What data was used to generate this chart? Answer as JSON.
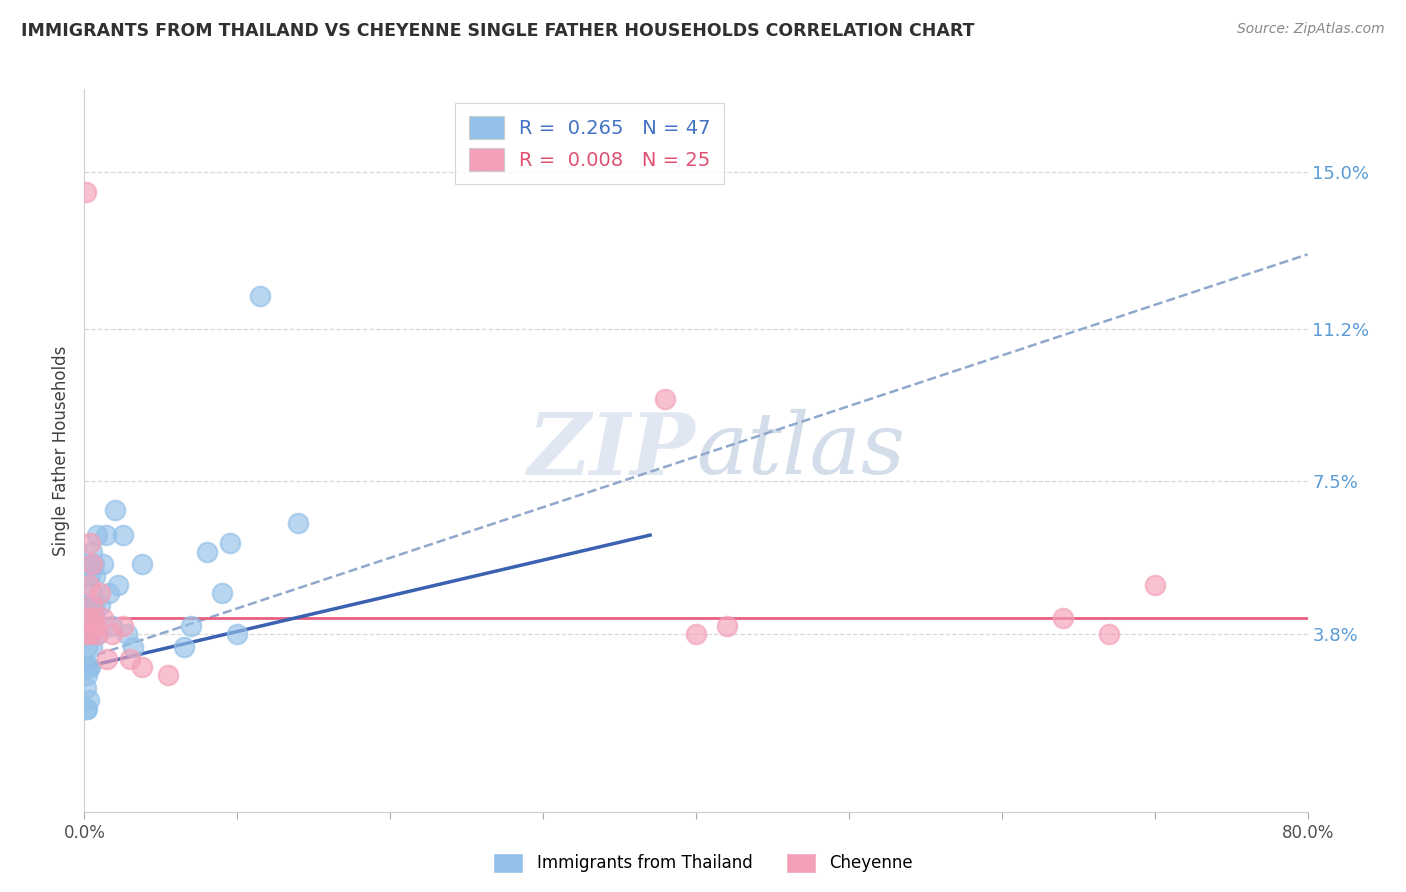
{
  "title": "IMMIGRANTS FROM THAILAND VS CHEYENNE SINGLE FATHER HOUSEHOLDS CORRELATION CHART",
  "source": "Source: ZipAtlas.com",
  "ylabel": "Single Father Households",
  "y_tick_labels": [
    "3.8%",
    "7.5%",
    "11.2%",
    "15.0%"
  ],
  "y_tick_values": [
    0.038,
    0.075,
    0.112,
    0.15
  ],
  "xlim": [
    0.0,
    0.8
  ],
  "ylim": [
    -0.005,
    0.17
  ],
  "series1_color": "#92c0e8",
  "series2_color": "#f4a0b8",
  "trendline1_color": "#3a62b0",
  "trendline2_color": "#e86080",
  "trendline_dashed_color": "#90a8cc",
  "watermark_color": "#c8d4e8",
  "background_color": "#ffffff",
  "grid_color": "#d8d8d8",
  "right_axis_color": "#5b9bd5",
  "title_color": "#303030",
  "series1_x": [
    0.001,
    0.001,
    0.001,
    0.001,
    0.002,
    0.002,
    0.002,
    0.002,
    0.002,
    0.003,
    0.003,
    0.003,
    0.003,
    0.003,
    0.004,
    0.004,
    0.004,
    0.004,
    0.005,
    0.005,
    0.005,
    0.005,
    0.006,
    0.006,
    0.007,
    0.007,
    0.008,
    0.009,
    0.01,
    0.012,
    0.014,
    0.016,
    0.018,
    0.02,
    0.022,
    0.025,
    0.028,
    0.032,
    0.038,
    0.065,
    0.07,
    0.08,
    0.09,
    0.095,
    0.1,
    0.115,
    0.14
  ],
  "series1_y": [
    0.02,
    0.025,
    0.03,
    0.038,
    0.02,
    0.028,
    0.035,
    0.04,
    0.045,
    0.022,
    0.03,
    0.038,
    0.045,
    0.055,
    0.03,
    0.038,
    0.042,
    0.052,
    0.035,
    0.042,
    0.048,
    0.058,
    0.045,
    0.055,
    0.042,
    0.052,
    0.062,
    0.038,
    0.045,
    0.055,
    0.062,
    0.048,
    0.04,
    0.068,
    0.05,
    0.062,
    0.038,
    0.035,
    0.055,
    0.035,
    0.04,
    0.058,
    0.048,
    0.06,
    0.038,
    0.12,
    0.065
  ],
  "series2_x": [
    0.001,
    0.002,
    0.002,
    0.003,
    0.004,
    0.004,
    0.005,
    0.005,
    0.006,
    0.007,
    0.008,
    0.01,
    0.012,
    0.015,
    0.018,
    0.025,
    0.03,
    0.038,
    0.055,
    0.38,
    0.4,
    0.42,
    0.64,
    0.67,
    0.7
  ],
  "series2_y": [
    0.145,
    0.042,
    0.038,
    0.05,
    0.038,
    0.06,
    0.045,
    0.055,
    0.042,
    0.04,
    0.038,
    0.048,
    0.042,
    0.032,
    0.038,
    0.04,
    0.032,
    0.03,
    0.028,
    0.095,
    0.038,
    0.04,
    0.042,
    0.038,
    0.05
  ],
  "trend1_x0": 0.0,
  "trend1_y0": 0.03,
  "trend1_x1": 0.37,
  "trend1_y1": 0.062,
  "trend_dashed_x0": 0.0,
  "trend_dashed_y0": 0.032,
  "trend_dashed_x1": 0.8,
  "trend_dashed_y1": 0.13,
  "trend2_x0": 0.0,
  "trend2_y0": 0.042,
  "trend2_x1": 0.8,
  "trend2_y1": 0.042
}
